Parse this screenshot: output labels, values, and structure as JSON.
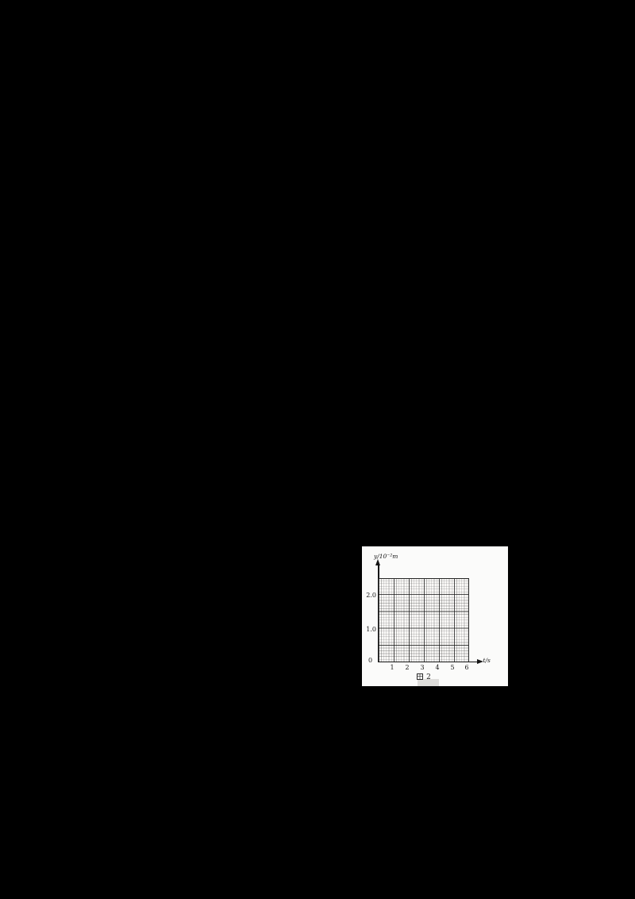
{
  "page": {
    "background": "#000000"
  },
  "figure": {
    "caption": "图2",
    "caption_number": "2",
    "y_axis": {
      "label": "y/10⁻²m",
      "ticks": [
        "2.0",
        "1.0"
      ],
      "origin": "0"
    },
    "x_axis": {
      "label": "t/s",
      "ticks": [
        "1",
        "2",
        "3",
        "4",
        "5",
        "6"
      ]
    },
    "chart_data": {
      "type": "line",
      "title": "图2",
      "xlabel": "t/s",
      "ylabel": "y/10⁻²m",
      "xlim": [
        0,
        6
      ],
      "ylim": [
        0,
        2.5
      ],
      "x_ticks": [
        1,
        2,
        3,
        4,
        5,
        6
      ],
      "y_ticks": [
        1.0,
        2.0
      ],
      "grid": "fine graph paper with darker major lines every 1 unit",
      "legend": "none",
      "series": [],
      "note": "blank plotting grid from scanned exam page; no curve drawn"
    }
  }
}
